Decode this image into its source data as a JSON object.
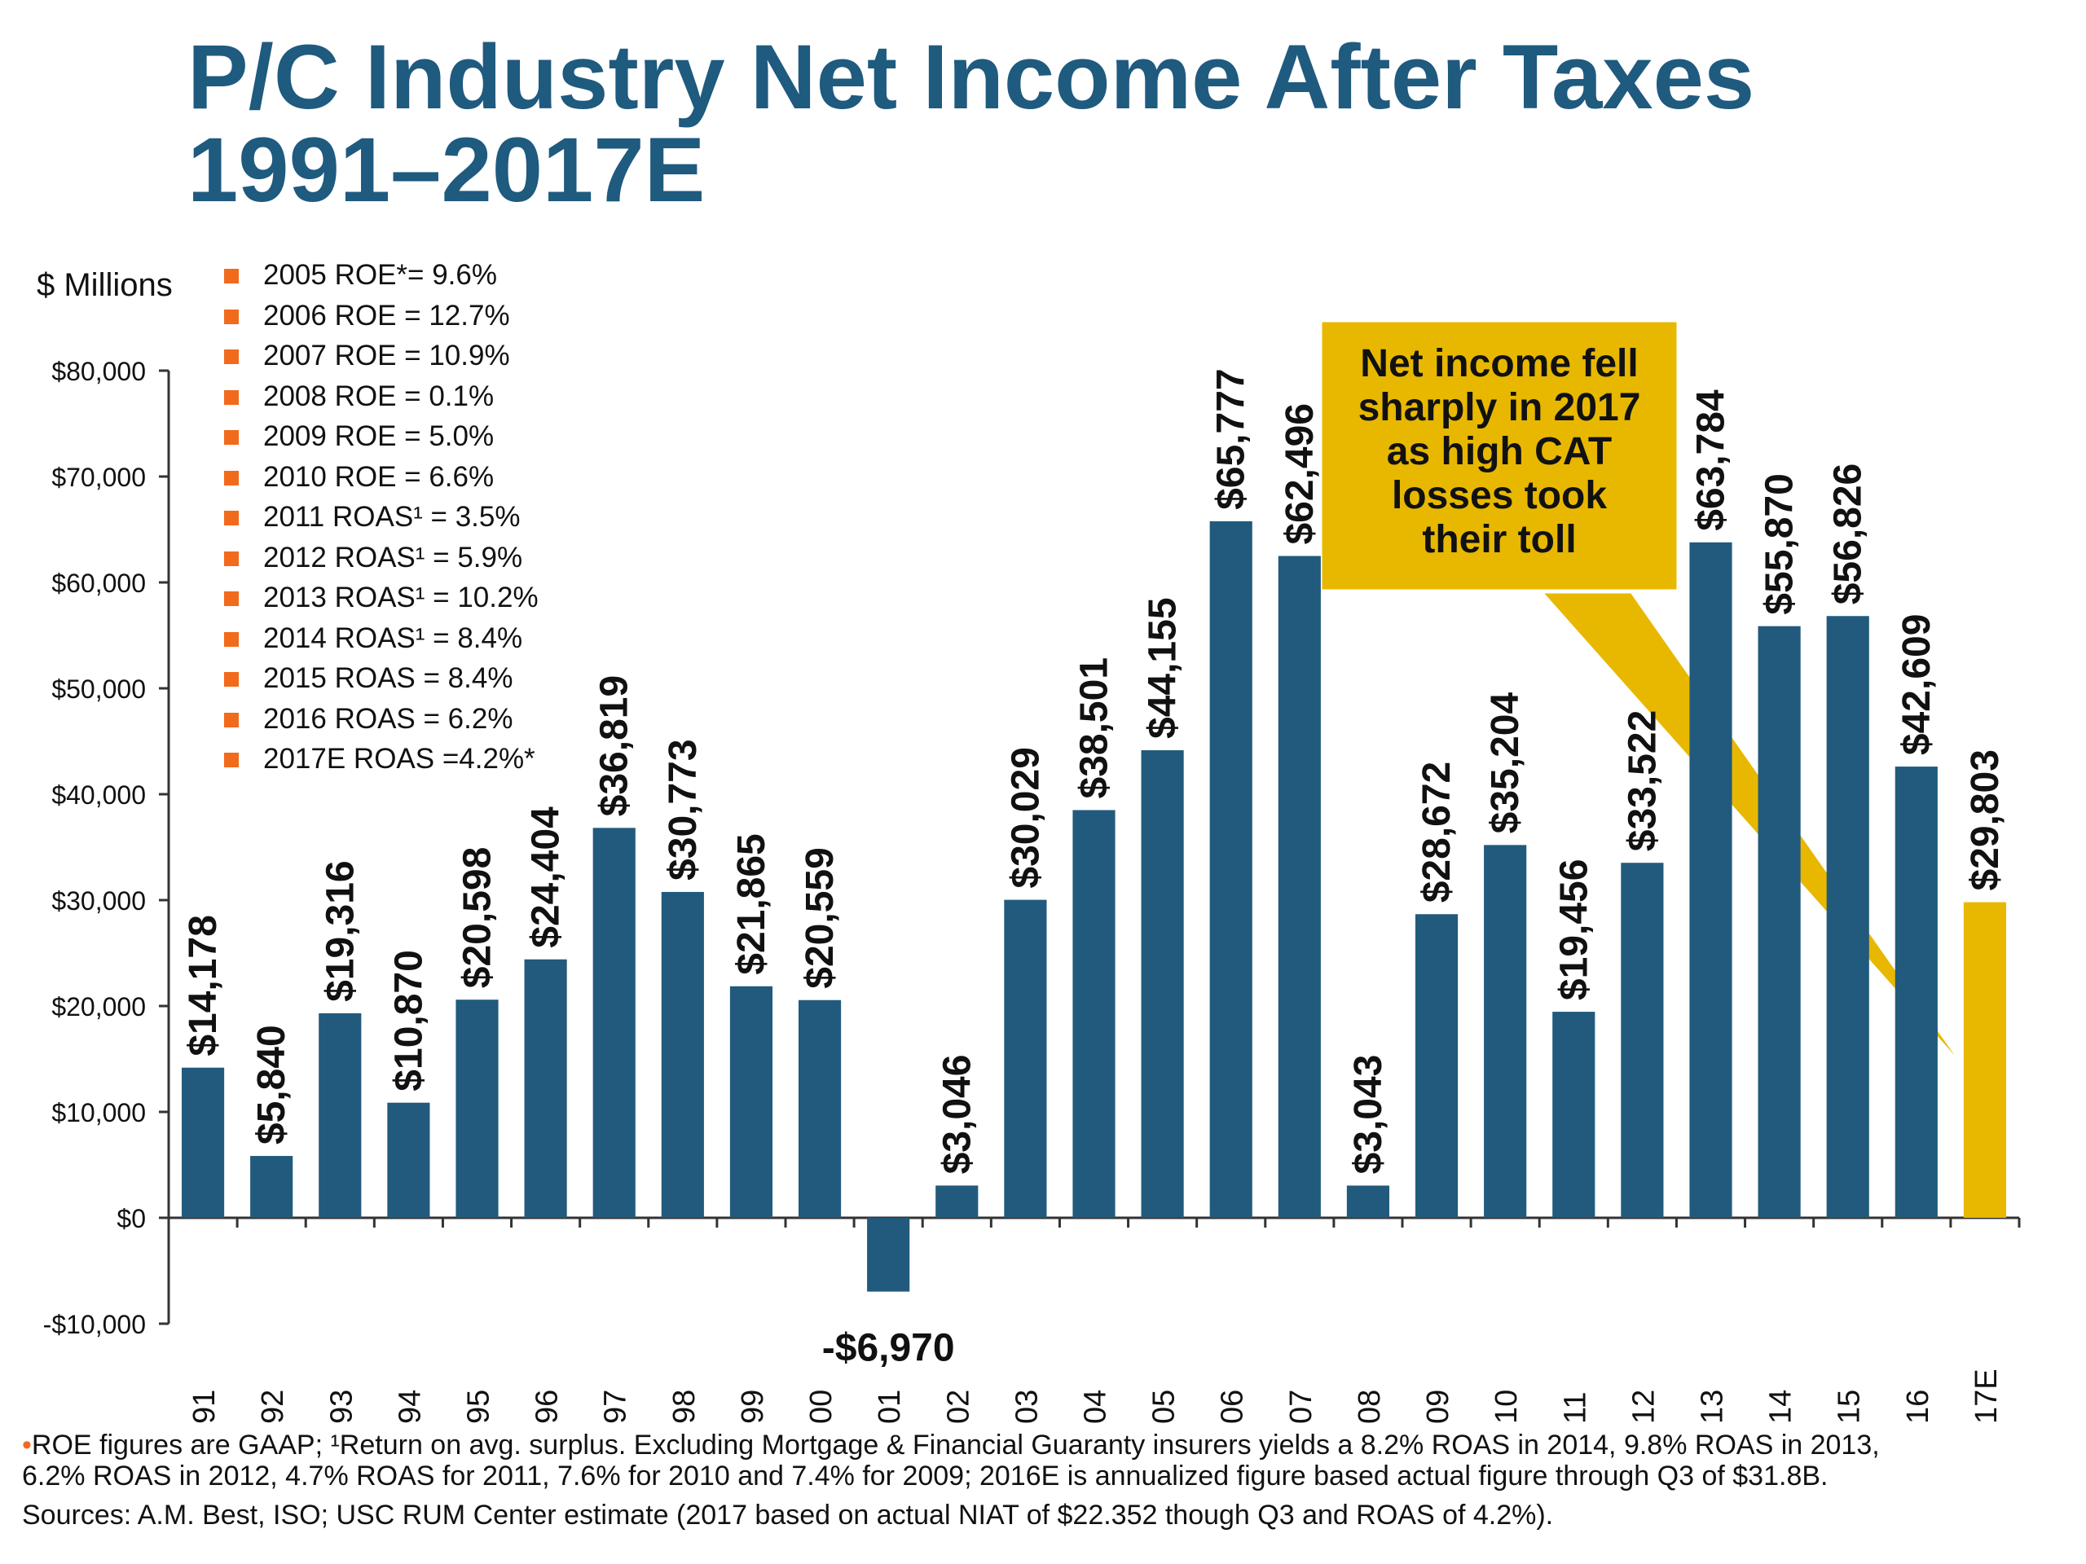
{
  "title": {
    "line1": "P/C Industry Net Income After Taxes",
    "line2": "1991–2017E"
  },
  "unit_label": "$ Millions",
  "roe_notes": [
    "2005 ROE*= 9.6%",
    "2006 ROE = 12.7%",
    "2007 ROE = 10.9%",
    "2008 ROE = 0.1%",
    "2009 ROE = 5.0%",
    "2010 ROE = 6.6%",
    "2011 ROAS¹ = 3.5%",
    "2012 ROAS¹ = 5.9%",
    "2013 ROAS¹ = 10.2%",
    "2014 ROAS¹ = 8.4%",
    "2015 ROAS = 8.4%",
    "2016 ROAS = 6.2%",
    "2017E ROAS =4.2%*"
  ],
  "callout": {
    "text": "Net income fell sharply in 2017 as high CAT losses took their toll",
    "lines": [
      "Net income fell",
      "sharply in 2017",
      "as high CAT",
      "losses took",
      "their toll"
    ],
    "color": "#e8b800"
  },
  "footnotes": {
    "bullet": "•",
    "line1": "ROE figures are GAAP; ¹Return on avg. surplus.  Excluding Mortgage & Financial Guaranty insurers yields a 8.2% ROAS in 2014, 9.8% ROAS in 2013,",
    "line2": "6.2% ROAS in 2012, 4.7% ROAS for 2011, 7.6% for 2010 and 7.4% for 2009; 2016E is annualized figure based actual figure through Q3 of $31.8B.",
    "sources": "Sources: A.M. Best, ISO; USC RUM Center estimate (2017 based on actual NIAT of $22.352 though Q3 and ROAS of 4.2%)."
  },
  "chart_data": {
    "type": "bar",
    "categories": [
      "91",
      "92",
      "93",
      "94",
      "95",
      "96",
      "97",
      "98",
      "99",
      "00",
      "01",
      "02",
      "03",
      "04",
      "05",
      "06",
      "07",
      "08",
      "09",
      "10",
      "11",
      "12",
      "13",
      "14",
      "15",
      "16",
      "17E"
    ],
    "values": [
      14178,
      5840,
      19316,
      10870,
      20598,
      24404,
      36819,
      30773,
      21865,
      20559,
      -6970,
      3046,
      30029,
      38501,
      44155,
      65777,
      62496,
      3043,
      28672,
      35204,
      19456,
      33522,
      63784,
      55870,
      56826,
      42609,
      29803
    ],
    "data_labels": [
      "$14,178",
      "$5,840",
      "$19,316",
      "$10,870",
      "$20,598",
      "$24,404",
      "$36,819",
      "$30,773",
      "$21,865",
      "$20,559",
      "-$6,970",
      "$3,046",
      "$30,029",
      "$38,501",
      "$44,155",
      "$65,777",
      "$62,496",
      "$3,043",
      "$28,672",
      "$35,204",
      "$19,456",
      "$33,522",
      "$63,784",
      "$55,870",
      "$56,826",
      "$42,609",
      "$29,803"
    ],
    "ylabel": "$ Millions",
    "ylim": [
      -10000,
      80000
    ],
    "yticks": [
      -10000,
      0,
      10000,
      20000,
      30000,
      40000,
      50000,
      60000,
      70000,
      80000
    ],
    "ytick_labels": [
      "-$10,000",
      "$0",
      "$10,000",
      "$20,000",
      "$30,000",
      "$40,000",
      "$50,000",
      "$60,000",
      "$70,000",
      "$80,000"
    ],
    "grid": false,
    "colors": {
      "bar": "#215a7c",
      "highlight": "#e8b800",
      "highlight_category": "17E"
    }
  }
}
